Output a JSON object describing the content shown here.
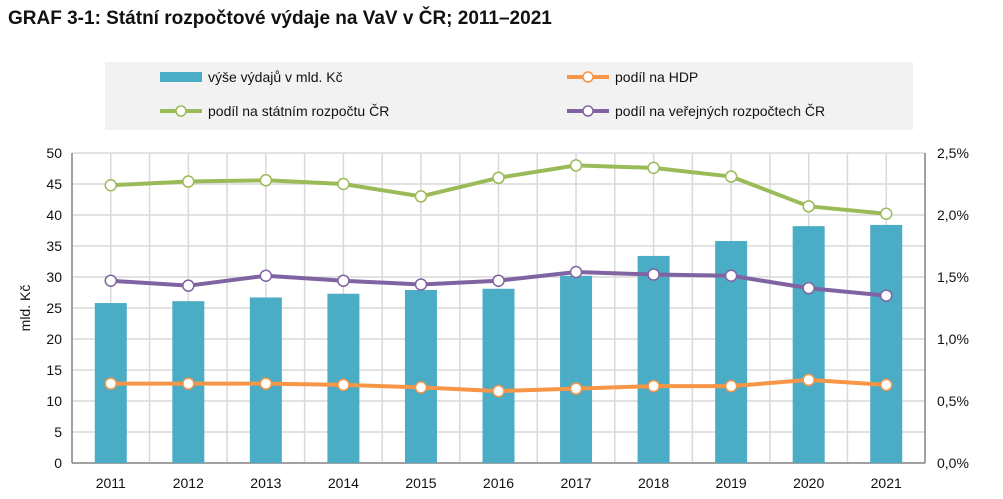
{
  "chart_data": {
    "type": "bar+line",
    "title": "GRAF 3-1: Státní rozpočtové výdaje na VaV v ČR; 2011–2021",
    "ylabel": "mld. Kč",
    "ylim": [
      0,
      50
    ],
    "y2lim": [
      0,
      2.5
    ],
    "yticks": [
      "0",
      "5",
      "10",
      "15",
      "20",
      "25",
      "30",
      "35",
      "40",
      "45",
      "50"
    ],
    "y2ticks": [
      "0,0%",
      "0,5%",
      "1,0%",
      "1,5%",
      "2,0%",
      "2,5%"
    ],
    "grid": true,
    "legend": "top",
    "categories": [
      "2011",
      "2012",
      "2013",
      "2014",
      "2015",
      "2016",
      "2017",
      "2018",
      "2019",
      "2020",
      "2021"
    ],
    "series": [
      {
        "name": "výše výdajů v mld. Kč",
        "type": "bar",
        "axis": "left",
        "color": "#4bacc6",
        "values": [
          25.8,
          26.1,
          26.7,
          27.3,
          27.9,
          28.1,
          30.2,
          33.4,
          35.8,
          38.2,
          38.4
        ]
      },
      {
        "name": "podíl na HDP",
        "type": "line",
        "axis": "right",
        "color": "#f79646",
        "values": [
          0.64,
          0.64,
          0.64,
          0.63,
          0.61,
          0.58,
          0.6,
          0.62,
          0.62,
          0.67,
          0.63
        ]
      },
      {
        "name": "podíl na státním rozpočtu ČR",
        "type": "line",
        "axis": "right",
        "color": "#9bbb59",
        "values": [
          2.24,
          2.27,
          2.28,
          2.25,
          2.15,
          2.3,
          2.4,
          2.38,
          2.31,
          2.07,
          2.01
        ]
      },
      {
        "name": "podíl na veřejných rozpočtech ČR",
        "type": "line",
        "axis": "right",
        "color": "#8064a2",
        "values": [
          1.47,
          1.43,
          1.51,
          1.47,
          1.44,
          1.47,
          1.54,
          1.52,
          1.51,
          1.41,
          1.35
        ]
      }
    ]
  }
}
